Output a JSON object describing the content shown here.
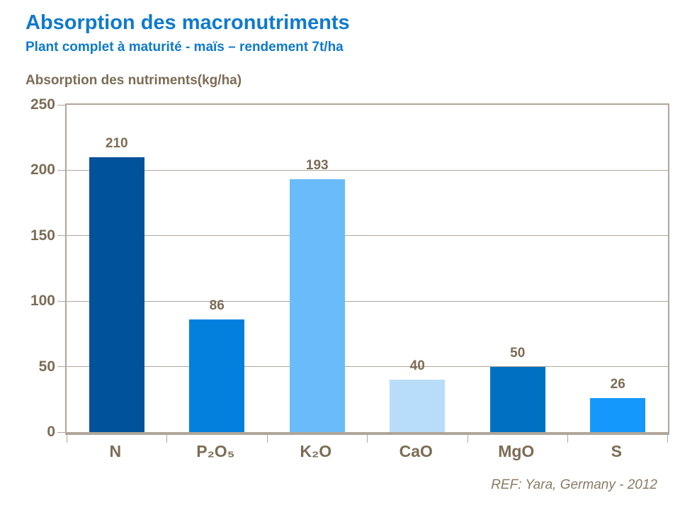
{
  "header": {
    "title": "Absorption des macronutriments",
    "subtitle": "Plant complet à maturité - maïs – rendement 7t/ha"
  },
  "chart_data": {
    "type": "bar",
    "title": "Absorption des nutriments(kg/ha)",
    "categories": [
      "N",
      "P₂O₅",
      "K₂O",
      "CaO",
      "MgO",
      "S"
    ],
    "values": [
      210,
      86,
      193,
      40,
      50,
      26
    ],
    "bar_colors": [
      "#00529B",
      "#0380DE",
      "#69BCF9",
      "#B8DDFB",
      "#0070C2",
      "#1498FB"
    ],
    "xlabel": "",
    "ylabel": "",
    "ylim": [
      0,
      250
    ],
    "yticks": [
      0,
      50,
      100,
      150,
      200,
      250
    ],
    "grid": true,
    "legend": "none"
  },
  "footer": {
    "reference": "REF: Yara, Germany - 2012"
  },
  "colors": {
    "title_blue": "#0F7ACC",
    "label_taupe": "#7C6C55",
    "grid_line": "#B0A79B",
    "footer_taupe": "#8A7A64"
  }
}
